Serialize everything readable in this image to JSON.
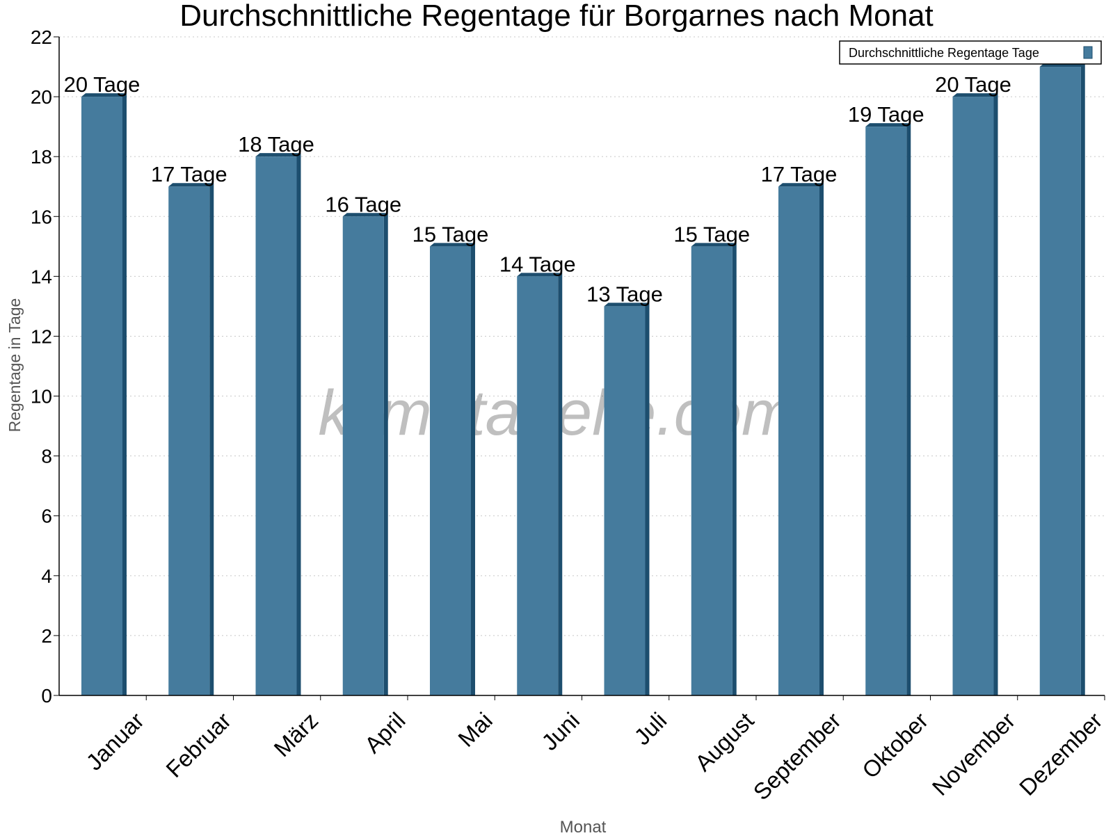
{
  "chart_data": {
    "type": "bar",
    "title": "Durchschnittliche Regentage für Borgarnes nach Monat",
    "xlabel": "Monat",
    "ylabel": "Regentage in Tage",
    "categories": [
      "Januar",
      "Februar",
      "März",
      "April",
      "Mai",
      "Juni",
      "Juli",
      "August",
      "September",
      "Oktober",
      "November",
      "Dezember"
    ],
    "series": [
      {
        "name": "Durchschnittliche Regentage Tage",
        "values": [
          20,
          17,
          18,
          16,
          15,
          14,
          13,
          15,
          17,
          19,
          20,
          21
        ]
      }
    ],
    "data_labels": [
      "20 Tage",
      "17 Tage",
      "18 Tage",
      "16 Tage",
      "15 Tage",
      "14 Tage",
      "13 Tage",
      "15 Tage",
      "17 Tage",
      "19 Tage",
      "20 Tage",
      ""
    ],
    "ylim": [
      0,
      22
    ],
    "yticks": [
      0,
      2,
      4,
      6,
      8,
      10,
      12,
      14,
      16,
      18,
      20,
      22
    ],
    "grid": true,
    "legend_placement": "top-right",
    "colors": {
      "bar": "#457b9d",
      "bar_dark": "#1d4e6e",
      "grid": "#c8c8c8"
    },
    "watermark": "klimatabelle.com"
  }
}
